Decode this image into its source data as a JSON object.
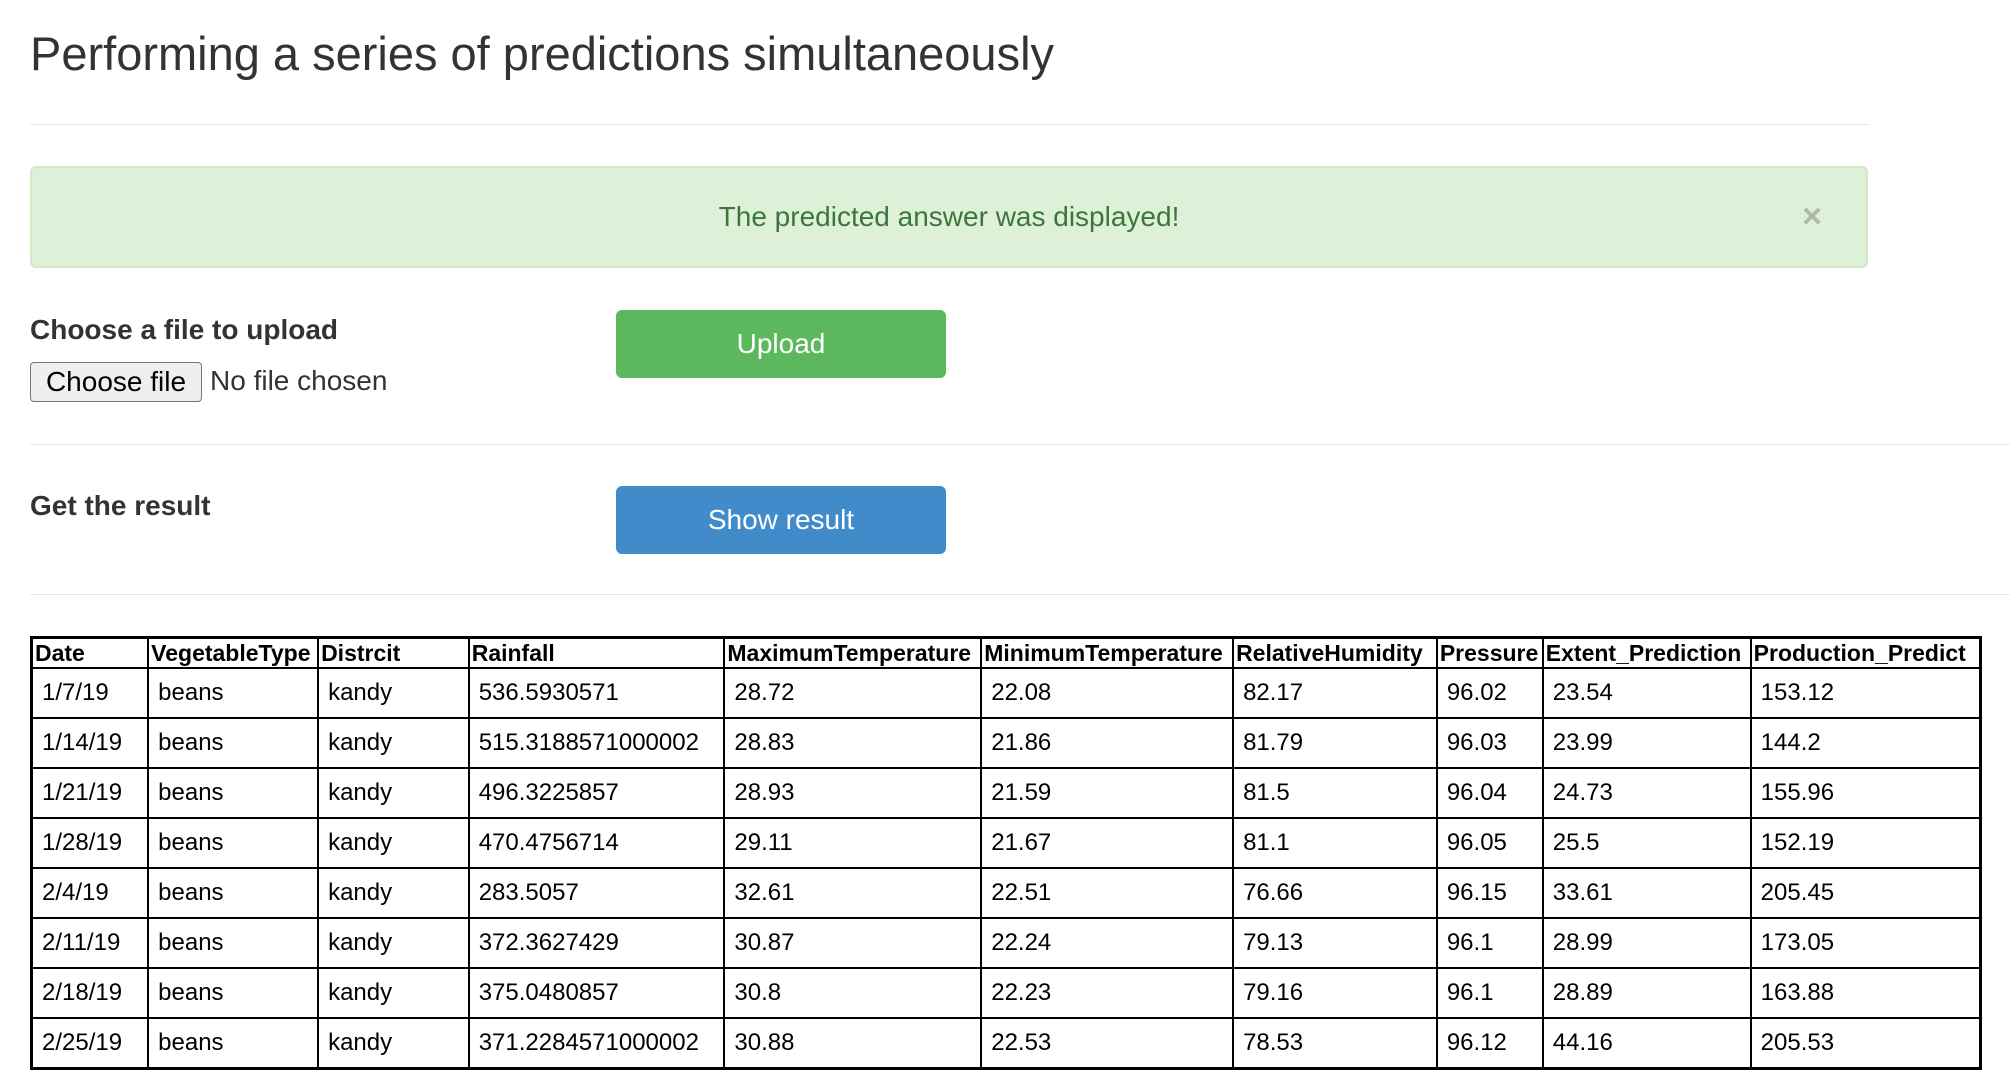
{
  "page": {
    "title": "Performing a series of predictions simultaneously"
  },
  "alert": {
    "message": "The predicted answer was displayed!",
    "close_symbol": "×"
  },
  "upload": {
    "label": "Choose a file to upload",
    "choose_button": "Choose file",
    "file_status": "No file chosen",
    "upload_button": "Upload"
  },
  "result": {
    "label": "Get the result",
    "show_button": "Show result"
  },
  "colors": {
    "success_bg": "#dff0d8",
    "upload_btn": "#5cb85c",
    "show_btn": "#428bca"
  },
  "table": {
    "headers": [
      "Date",
      "VegetableType",
      "Distrcit",
      "Rainfall",
      "MaximumTemperature",
      "MinimumTemperature",
      "RelativeHumidity",
      "Pressure",
      "Extent_Prediction",
      "Production_Predict"
    ],
    "rows": [
      [
        "1/7/19",
        "beans",
        "kandy",
        "536.5930571",
        "28.72",
        "22.08",
        "82.17",
        "96.02",
        "23.54",
        "153.12"
      ],
      [
        "1/14/19",
        "beans",
        "kandy",
        "515.3188571000002",
        "28.83",
        "21.86",
        "81.79",
        "96.03",
        "23.99",
        "144.2"
      ],
      [
        "1/21/19",
        "beans",
        "kandy",
        "496.3225857",
        "28.93",
        "21.59",
        "81.5",
        "96.04",
        "24.73",
        "155.96"
      ],
      [
        "1/28/19",
        "beans",
        "kandy",
        "470.4756714",
        "29.11",
        "21.67",
        "81.1",
        "96.05",
        "25.5",
        "152.19"
      ],
      [
        "2/4/19",
        "beans",
        "kandy",
        "283.5057",
        "32.61",
        "22.51",
        "76.66",
        "96.15",
        "33.61",
        "205.45"
      ],
      [
        "2/11/19",
        "beans",
        "kandy",
        "372.3627429",
        "30.87",
        "22.24",
        "79.13",
        "96.1",
        "28.99",
        "173.05"
      ],
      [
        "2/18/19",
        "beans",
        "kandy",
        "375.0480857",
        "30.8",
        "22.23",
        "79.16",
        "96.1",
        "28.89",
        "163.88"
      ],
      [
        "2/25/19",
        "beans",
        "kandy",
        "371.2284571000002",
        "30.88",
        "22.53",
        "78.53",
        "96.12",
        "44.16",
        "205.53"
      ]
    ]
  }
}
